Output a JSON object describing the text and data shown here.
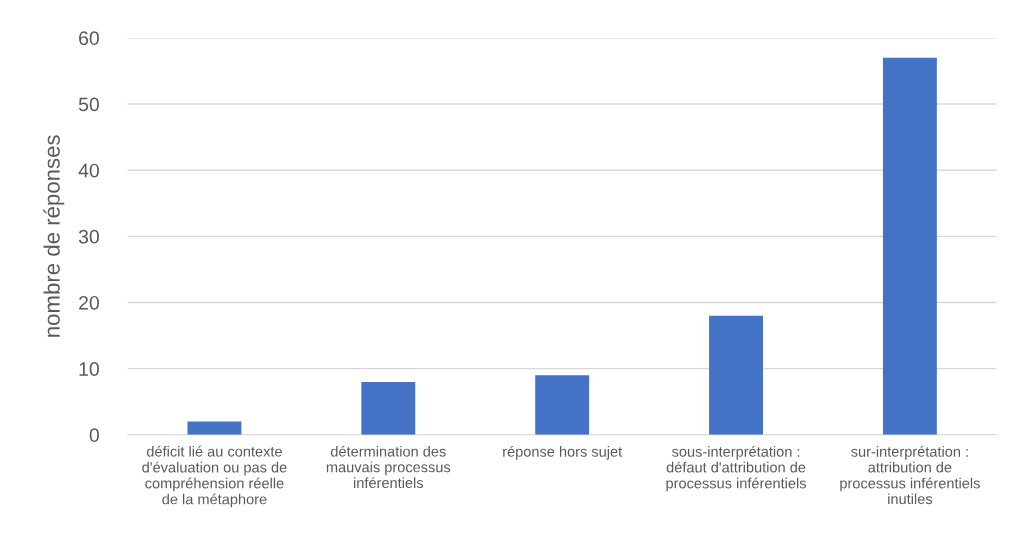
{
  "chart_data": {
    "type": "bar",
    "ylabel": "nombre de réponses",
    "categories": [
      "déficit lié au contexte\nd'évaluation ou pas de\ncompréhension réelle\nde la métaphore",
      "détermination des\nmauvais processus\ninférentiels",
      "réponse hors sujet",
      "sous-interprétation :\ndéfaut d'attribution de\nprocessus inférentiels",
      "sur-interprétation :\nattribution de\nprocessus inférentiels\ninutiles"
    ],
    "values": [
      2,
      8,
      9,
      18,
      57
    ],
    "color": "#4472c4",
    "ylim": [
      0,
      60
    ],
    "yticks": [
      0,
      10,
      20,
      30,
      40,
      50,
      60
    ],
    "grid": "y"
  }
}
